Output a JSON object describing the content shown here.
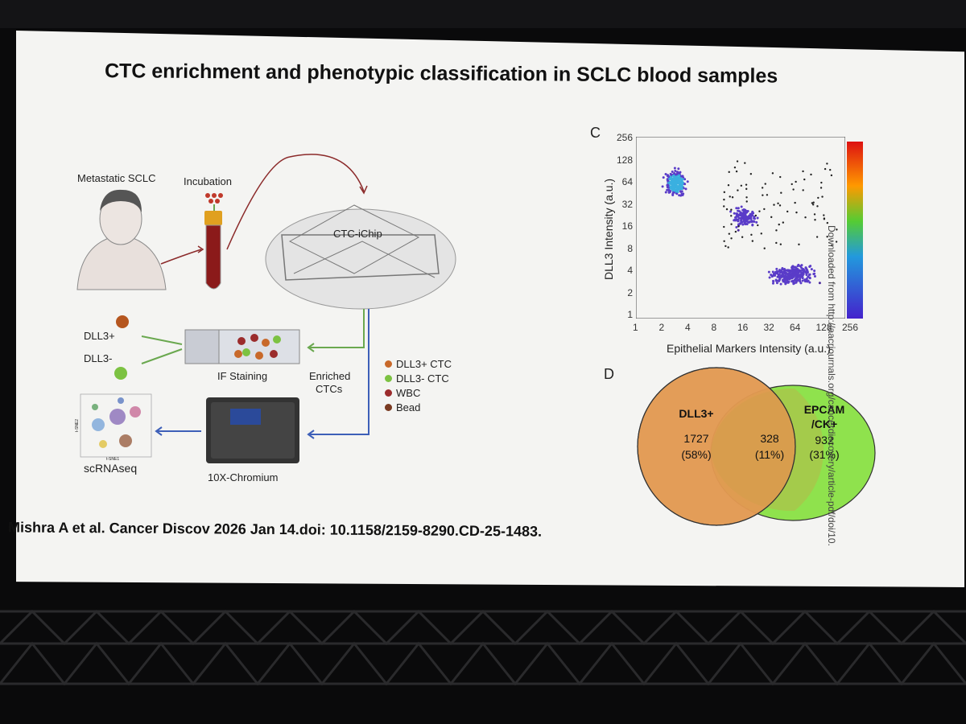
{
  "slide": {
    "title": "CTC enrichment and phenotypic classification in SCLC blood samples",
    "citation": "Mishra A et al. Cancer Discov 2026 Jan 14.doi: 10.1158/2159-8290.CD-25-1483."
  },
  "workflow": {
    "patient_label": "Metastatic SCLC",
    "incubation_label": "Incubation",
    "chip_label": "CTC-iChip",
    "dll3_pos_label": "DLL3+",
    "dll3_neg_label": "DLL3-",
    "if_label": "IF Staining",
    "enriched_label_1": "Enriched",
    "enriched_label_2": "CTCs",
    "chromium_label": "10X-Chromium",
    "scrna_label": "scRNAseq",
    "tsne_x": "t-SNE1",
    "tsne_y": "t-SNE2",
    "legend": [
      {
        "label": "DLL3+ CTC",
        "color": "#c8692a"
      },
      {
        "label": "DLL3- CTC",
        "color": "#7cc242"
      },
      {
        "label": "WBC",
        "color": "#9b2c2c"
      },
      {
        "label": "Bead",
        "color": "#7a3b22"
      }
    ]
  },
  "scatter": {
    "panel": "C",
    "xlabel": "Epithelial Markers Intensity (a.u.)",
    "ylabel": "DLL3 Intensity (a.u.)",
    "x_ticks": [
      "1",
      "2",
      "4",
      "8",
      "16",
      "32",
      "64",
      "128",
      "256"
    ],
    "y_ticks": [
      "256",
      "128",
      "64",
      "32",
      "16",
      "8",
      "4",
      "2",
      "1"
    ]
  },
  "venn": {
    "panel": "D",
    "left_title": "DLL3+",
    "left_count": "1727",
    "left_pct": "(58%)",
    "overlap_count": "328",
    "overlap_pct": "(11%)",
    "right_title_1": "EPCAM",
    "right_title_2": "/CK+",
    "right_count": "932",
    "right_pct": "(31%)",
    "left_color": "#e39a52",
    "right_color": "#8fe24d"
  },
  "watermark": "Downloaded from http://aacrjournals.org/cancerdiscovery/article-pdf/doi/10."
}
